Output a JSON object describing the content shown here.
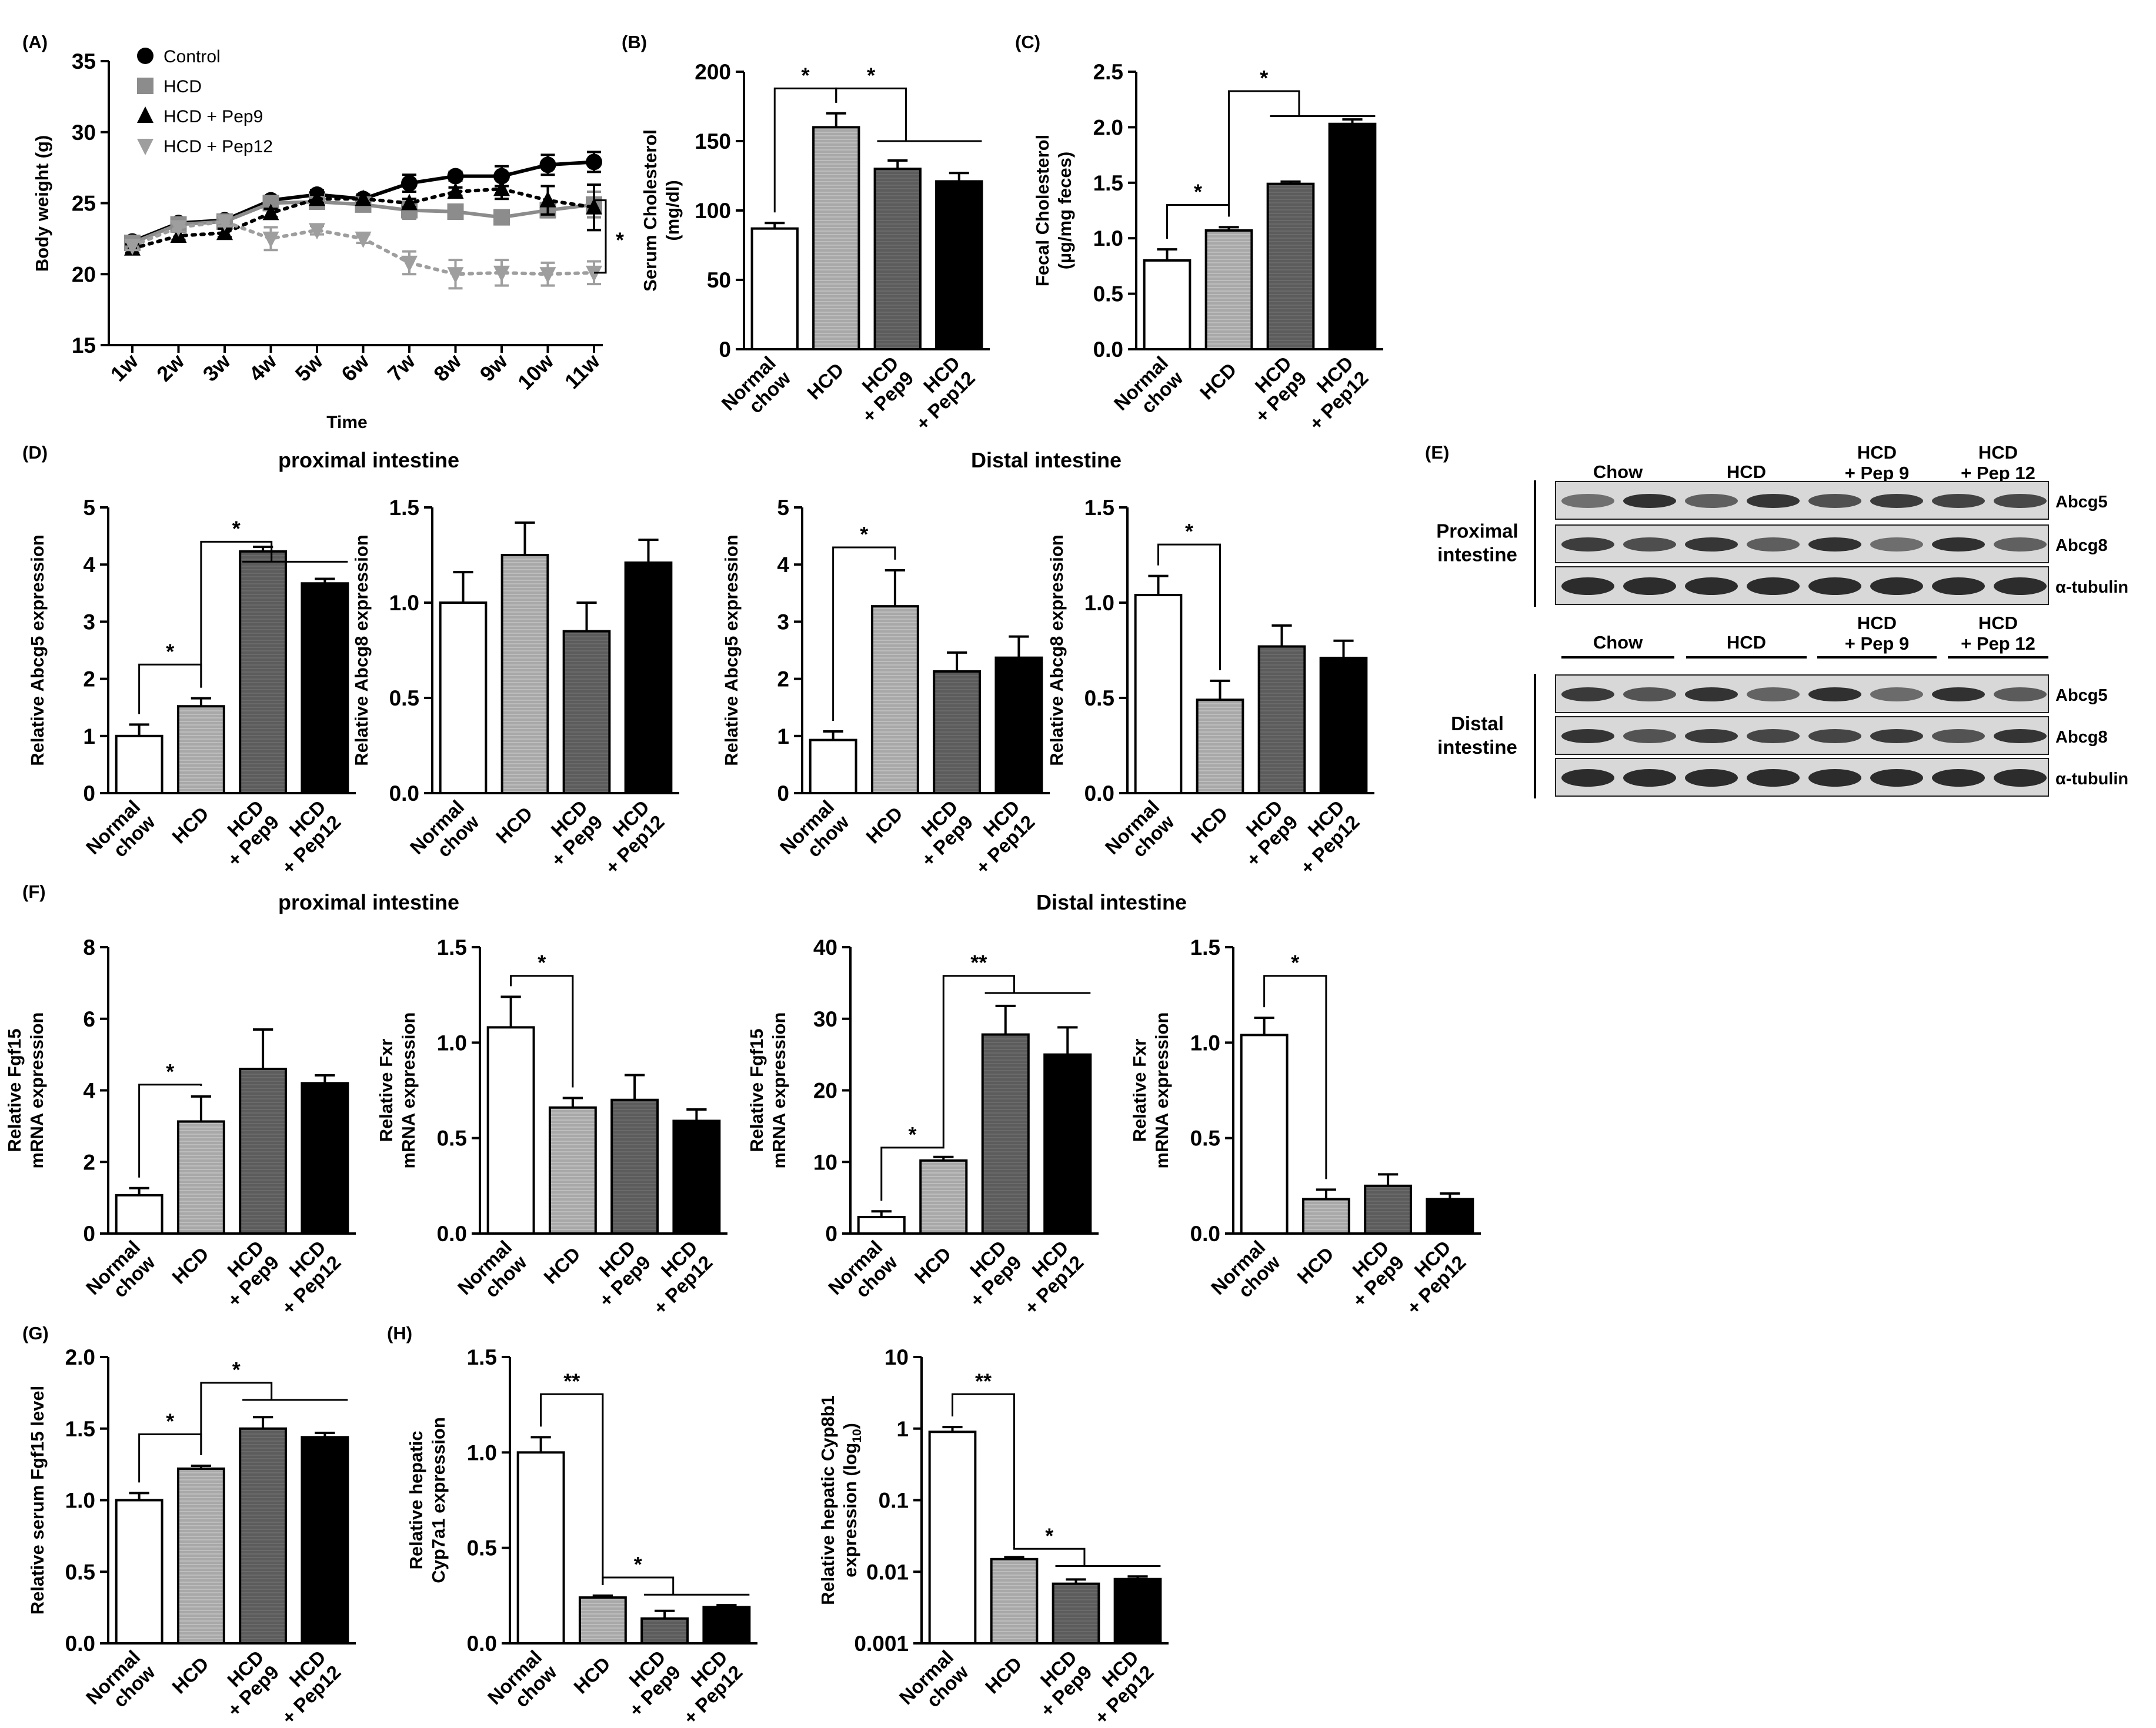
{
  "panel_letters": {
    "A": "(A)",
    "B": "(B)",
    "C": "(C)",
    "D": "(D)",
    "E": "(E)",
    "F": "(F)",
    "G": "(G)",
    "H": "(H)"
  },
  "section_titles": {
    "d_proximal": "proximal intestine",
    "d_distal": "Distal intestine",
    "f_proximal": "proximal intestine",
    "f_distal": "Distal intestine"
  },
  "colors": {
    "normal": "#ffffff",
    "hcd": "#a8a8a8",
    "pep9": "#5c5c5c",
    "pep12": "#000000",
    "grey_line": "#8c8c8c",
    "light_grey_line": "#9e9e9e"
  },
  "group_labels": [
    [
      "Normal",
      "chow"
    ],
    [
      "HCD"
    ],
    [
      "HCD",
      "+ Pep9"
    ],
    [
      "HCD",
      "+ Pep12"
    ]
  ],
  "western": {
    "header_groups": [
      {
        "lines": [
          "Chow"
        ]
      },
      {
        "lines": [
          "HCD"
        ]
      },
      {
        "lines": [
          "HCD",
          "+ Pep 9"
        ]
      },
      {
        "lines": [
          "HCD",
          "+ Pep 12"
        ]
      }
    ],
    "bands": [
      "Abcg5",
      "Abcg8",
      "α-tubulin"
    ],
    "tissues": [
      [
        "Proximal",
        "intestine"
      ],
      [
        "Distal",
        "intestine"
      ]
    ]
  },
  "chart_data": [
    {
      "id": "A",
      "type": "line",
      "xlabel": "Time",
      "ylabel": "Body weight (g)",
      "categories": [
        "1w",
        "2w",
        "3w",
        "4w",
        "5w",
        "6w",
        "7w",
        "8w",
        "9w",
        "10w",
        "11w"
      ],
      "ylim": [
        15,
        35
      ],
      "yticks": [
        15,
        20,
        25,
        30,
        35
      ],
      "series": [
        {
          "name": "Control",
          "marker": "circle",
          "style": "solid",
          "color": "#000000",
          "values": [
            22.3,
            23.6,
            23.8,
            25.2,
            25.6,
            25.3,
            26.4,
            26.9,
            26.9,
            27.7,
            27.9
          ],
          "errors": [
            0.3,
            0.3,
            0.3,
            0.3,
            0.3,
            0.3,
            0.6,
            0.3,
            0.7,
            0.7,
            0.7
          ]
        },
        {
          "name": "HCD",
          "marker": "square",
          "style": "solid",
          "color": "#8c8c8c",
          "values": [
            22.2,
            23.5,
            23.7,
            25.0,
            25.1,
            24.9,
            24.5,
            24.4,
            24.0,
            24.5,
            24.9
          ],
          "errors": [
            0.3,
            0.3,
            0.3,
            0.3,
            0.3,
            0.3,
            0.6,
            0.3,
            0.3,
            0.5,
            0.9
          ]
        },
        {
          "name": "HCD + Pep9",
          "marker": "triangle",
          "style": "dotted",
          "color": "#000000",
          "values": [
            21.8,
            22.7,
            22.9,
            24.3,
            25.3,
            25.3,
            25.0,
            25.8,
            26.0,
            25.2,
            24.7
          ],
          "errors": [
            0.3,
            0.3,
            0.3,
            0.3,
            0.3,
            0.3,
            0.3,
            0.3,
            0.7,
            1.0,
            1.6
          ]
        },
        {
          "name": "HCD + Pep12",
          "marker": "triangle-down",
          "style": "dotted",
          "color": "#9e9e9e",
          "values": [
            22.0,
            23.3,
            23.7,
            22.5,
            23.1,
            22.5,
            20.8,
            20.0,
            20.1,
            20.0,
            20.1
          ],
          "errors": [
            0.3,
            0.3,
            0.3,
            0.8,
            0.3,
            0.3,
            0.8,
            1.0,
            0.9,
            0.8,
            0.8
          ]
        }
      ],
      "annotations": [
        "*"
      ]
    },
    {
      "id": "B",
      "type": "bar",
      "ylabel": [
        "Serum Cholesterol",
        "(mg/dl)"
      ],
      "ylim": [
        0,
        200
      ],
      "yticks": [
        "0",
        "50",
        "100",
        "150",
        "200"
      ],
      "values": [
        87,
        160,
        130,
        121
      ],
      "errors": [
        4,
        10,
        6,
        6
      ],
      "annotations": [
        "*",
        "*"
      ]
    },
    {
      "id": "C",
      "type": "bar",
      "ylabel": [
        "Fecal Cholesterol",
        "(µg/mg feces)"
      ],
      "ylim": [
        0,
        2.5
      ],
      "yticks": [
        "0.0",
        "0.5",
        "1.0",
        "1.5",
        "2.0",
        "2.5"
      ],
      "values": [
        0.8,
        1.07,
        1.49,
        2.03
      ],
      "errors": [
        0.1,
        0.03,
        0.02,
        0.04
      ],
      "annotations": [
        "*",
        "*"
      ]
    },
    {
      "id": "D1",
      "type": "bar",
      "ylabel": [
        "Relative Abcg5 expression"
      ],
      "ylim": [
        0,
        5
      ],
      "yticks": [
        "0",
        "1",
        "2",
        "3",
        "4",
        "5"
      ],
      "values": [
        1.0,
        1.52,
        4.23,
        3.67
      ],
      "errors": [
        0.2,
        0.14,
        0.08,
        0.08
      ],
      "annotations": [
        "*",
        "*"
      ]
    },
    {
      "id": "D2",
      "type": "bar",
      "ylabel": [
        "Relative Abcg8 expression"
      ],
      "ylim": [
        0,
        1.5
      ],
      "yticks": [
        "0.0",
        "0.5",
        "1.0",
        "1.5"
      ],
      "values": [
        1.0,
        1.25,
        0.85,
        1.21
      ],
      "errors": [
        0.16,
        0.17,
        0.15,
        0.12
      ],
      "annotations": []
    },
    {
      "id": "D3",
      "type": "bar",
      "ylabel": [
        "Relative Abcg5 expression"
      ],
      "ylim": [
        0,
        5
      ],
      "yticks": [
        "0",
        "1",
        "2",
        "3",
        "4",
        "5"
      ],
      "values": [
        0.93,
        3.27,
        2.13,
        2.37
      ],
      "errors": [
        0.15,
        0.63,
        0.33,
        0.37
      ],
      "annotations": [
        "*"
      ]
    },
    {
      "id": "D4",
      "type": "bar",
      "ylabel": [
        "Relative Abcg8 expression"
      ],
      "ylim": [
        0,
        1.5
      ],
      "yticks": [
        "0.0",
        "0.5",
        "1.0",
        "1.5"
      ],
      "values": [
        1.04,
        0.49,
        0.77,
        0.71
      ],
      "errors": [
        0.1,
        0.1,
        0.11,
        0.09
      ],
      "annotations": [
        "*"
      ]
    },
    {
      "id": "F1",
      "type": "bar",
      "ylabel": [
        "Relative Fgf15",
        "mRNA expression"
      ],
      "ylim": [
        0,
        8
      ],
      "yticks": [
        "0",
        "2",
        "4",
        "6",
        "8"
      ],
      "values": [
        1.07,
        3.13,
        4.6,
        4.2
      ],
      "errors": [
        0.2,
        0.7,
        1.1,
        0.22
      ],
      "annotations": [
        "*"
      ]
    },
    {
      "id": "F2",
      "type": "bar",
      "ylabel": [
        "Relative Fxr",
        "mRNA expression"
      ],
      "ylim": [
        0,
        1.5
      ],
      "yticks": [
        "0.0",
        "0.5",
        "1.0",
        "1.5"
      ],
      "values": [
        1.08,
        0.66,
        0.7,
        0.59
      ],
      "errors": [
        0.16,
        0.05,
        0.13,
        0.06
      ],
      "annotations": [
        "*"
      ]
    },
    {
      "id": "F3",
      "type": "bar",
      "ylabel": [
        "Relative Fgf15",
        "mRNA expression"
      ],
      "ylim": [
        0,
        40
      ],
      "yticks": [
        "0",
        "10",
        "20",
        "30",
        "40"
      ],
      "values": [
        2.3,
        10.2,
        27.8,
        25.0
      ],
      "errors": [
        0.8,
        0.5,
        4,
        3.8
      ],
      "annotations": [
        "*",
        "**"
      ]
    },
    {
      "id": "F4",
      "type": "bar",
      "ylabel": [
        "Relative Fxr",
        "mRNA expression"
      ],
      "ylim": [
        0,
        1.5
      ],
      "yticks": [
        "0.0",
        "0.5",
        "1.0",
        "1.5"
      ],
      "values": [
        1.04,
        0.18,
        0.25,
        0.18
      ],
      "errors": [
        0.09,
        0.05,
        0.06,
        0.03
      ],
      "annotations": [
        "*"
      ]
    },
    {
      "id": "G",
      "type": "bar",
      "ylabel": [
        "Relative serum Fgf15 level"
      ],
      "ylim": [
        0,
        2
      ],
      "yticks": [
        "0.0",
        "0.5",
        "1.0",
        "1.5",
        "2.0"
      ],
      "values": [
        1.0,
        1.22,
        1.5,
        1.44
      ],
      "errors": [
        0.05,
        0.02,
        0.08,
        0.03
      ],
      "annotations": [
        "*",
        "*"
      ]
    },
    {
      "id": "H1",
      "type": "bar",
      "ylabel": [
        "Relative hepatic",
        "Cyp7a1 expression"
      ],
      "ylim": [
        0,
        1.5
      ],
      "yticks": [
        "0.0",
        "0.5",
        "1.0",
        "1.5"
      ],
      "values": [
        1.0,
        0.24,
        0.13,
        0.19
      ],
      "errors": [
        0.08,
        0.01,
        0.04,
        0.01
      ],
      "annotations": [
        "**",
        "*"
      ]
    },
    {
      "id": "H2",
      "type": "bar",
      "scale": "log",
      "ylabel": [
        "Relative hepatic Cyp8b1",
        "expression (log10)"
      ],
      "ylim": [
        0.001,
        10
      ],
      "yticks": [
        "0.001",
        "0.01",
        "0.1",
        "1",
        "10"
      ],
      "values": [
        0.9,
        0.015,
        0.0068,
        0.0079
      ],
      "errors": [
        0.15,
        0.001,
        0.001,
        0.0007
      ],
      "annotations": [
        "**",
        "*"
      ]
    }
  ]
}
